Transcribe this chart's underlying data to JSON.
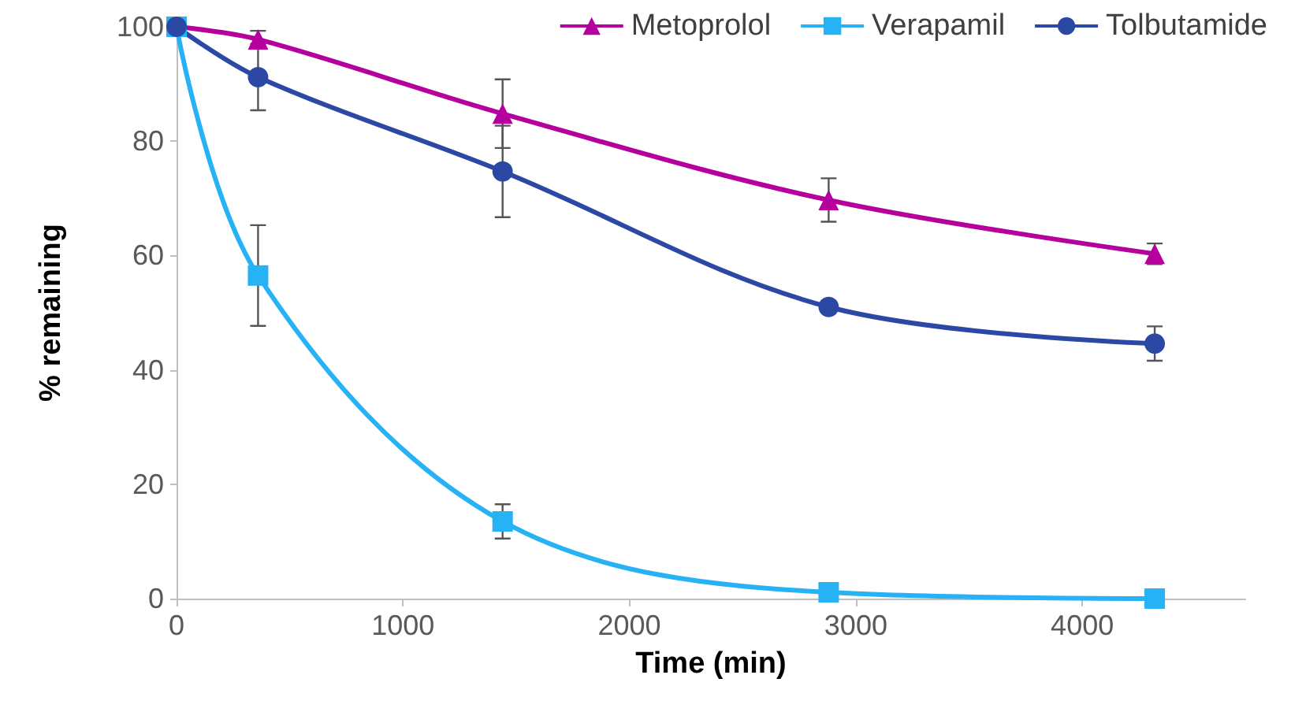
{
  "chart_data": {
    "type": "line",
    "xlabel": "Time (min)",
    "ylabel": "% remaining",
    "x": [
      0,
      360,
      1440,
      2880,
      4320
    ],
    "xlim": [
      0,
      4720
    ],
    "xticks": [
      0,
      {
        "value": 1000,
        "label": "1000"
      },
      {
        "value": 2000,
        "label": "2000"
      },
      {
        "value": 3000,
        "label": "3000"
      },
      {
        "value": 4000,
        "label": "4000"
      }
    ],
    "ylim": [
      0,
      100
    ],
    "yticks": [
      0,
      20,
      40,
      60,
      80,
      100
    ],
    "grid": false,
    "legend": "top right",
    "series": [
      {
        "name": "Metoprolol",
        "color": "#b5009e",
        "marker": "triangle",
        "values": [
          100,
          97.8,
          84.8,
          69.7,
          60.3
        ],
        "errors": [
          null,
          1.5,
          6,
          3.8,
          1.8
        ]
      },
      {
        "name": "Verapamil",
        "color": "#27b2f5",
        "marker": "square",
        "values": [
          100,
          56.5,
          13.5,
          1.1,
          0
        ],
        "errors": [
          null,
          8.8,
          3,
          null,
          null
        ]
      },
      {
        "name": "Tolbutamide",
        "color": "#2b48a5",
        "marker": "circle",
        "values": [
          100,
          91.2,
          74.7,
          51,
          44.6
        ],
        "errors": [
          null,
          5.8,
          8,
          null,
          3
        ]
      }
    ]
  }
}
